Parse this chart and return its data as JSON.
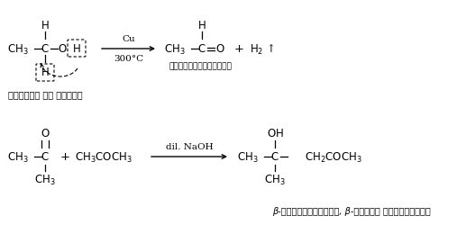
{
  "background_color": "#ffffff",
  "fig_width": 5.07,
  "fig_height": 2.51,
  "dpi": 100,
  "hindi_caption1": "एसीटोन का संघनन",
  "hindi_acetaldehyde": "एसीटेल्डिहाइड",
  "hindi_caption2": "β-हाइड्रॉक्सी, β-मेथिल पेन्टानोन"
}
